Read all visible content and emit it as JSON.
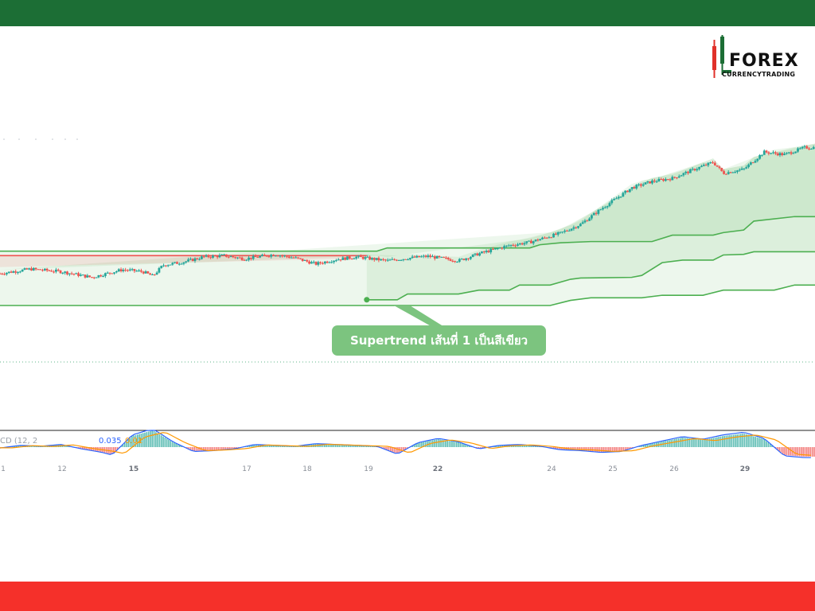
{
  "colors": {
    "top_bar": "#1c6e35",
    "bottom_bar": "#f5302a",
    "up_candle": "#26a69a",
    "down_candle": "#ef5350",
    "supertrend_green": "#4caf50",
    "supertrend_red": "#ef5350",
    "callout_bg": "#7cc47f",
    "macd_line": "#2962ff",
    "signal_line": "#ff9800"
  },
  "logo": {
    "main": "FOREX",
    "sub": "CURRENCYTRADING",
    "mark_icon": "candlestick-logo-icon"
  },
  "callout": {
    "text": "Supertrend เส้นที่ 1 เป็นสีเขียว"
  },
  "macd": {
    "legend_name": "CD (12, 2",
    "value_macd": "0.035",
    "value_signal": "0.01"
  },
  "chart_data": {
    "type": "candlestick",
    "x_tick_labels": [
      {
        "label": "1",
        "bold": false
      },
      {
        "label": "12",
        "bold": false
      },
      {
        "label": "15",
        "bold": true
      },
      {
        "label": "17",
        "bold": false
      },
      {
        "label": "18",
        "bold": false
      },
      {
        "label": "19",
        "bold": false
      },
      {
        "label": "22",
        "bold": true
      },
      {
        "label": "24",
        "bold": false
      },
      {
        "label": "25",
        "bold": false
      },
      {
        "label": "26",
        "bold": false
      },
      {
        "label": "29",
        "bold": true
      }
    ],
    "price_path": [
      [
        0,
        50
      ],
      [
        3,
        57
      ],
      [
        6,
        53
      ],
      [
        9,
        44
      ],
      [
        12,
        56
      ],
      [
        14,
        53
      ],
      [
        15,
        46
      ],
      [
        16,
        63
      ],
      [
        18,
        68
      ],
      [
        20,
        76
      ],
      [
        22,
        78
      ],
      [
        24,
        73
      ],
      [
        27,
        80
      ],
      [
        29,
        74
      ],
      [
        31,
        65
      ],
      [
        33,
        72
      ],
      [
        35,
        76
      ],
      [
        38,
        70
      ],
      [
        40,
        74
      ],
      [
        42,
        77
      ],
      [
        45,
        70
      ],
      [
        47,
        81
      ],
      [
        50,
        94
      ],
      [
        52,
        99
      ],
      [
        55,
        113
      ],
      [
        57,
        127
      ],
      [
        59,
        151
      ],
      [
        61,
        173
      ],
      [
        62,
        184
      ],
      [
        64,
        194
      ],
      [
        66,
        199
      ],
      [
        68,
        212
      ],
      [
        70,
        224
      ],
      [
        71,
        207
      ],
      [
        73,
        213
      ],
      [
        75,
        240
      ],
      [
        77,
        236
      ],
      [
        79,
        247
      ]
    ],
    "x_range": [
      0,
      80
    ],
    "y_range": [
      0,
      260
    ],
    "supertrend_lines": [
      {
        "id": "supertrend-3",
        "color": "green",
        "points": [
          [
            0,
            0
          ],
          [
            54,
            0
          ],
          [
            56,
            8
          ],
          [
            58,
            12
          ],
          [
            63,
            12
          ],
          [
            65,
            16
          ],
          [
            69,
            16
          ],
          [
            71,
            24
          ],
          [
            76,
            24
          ],
          [
            78,
            32
          ],
          [
            80,
            32
          ]
        ]
      },
      {
        "id": "supertrend-1",
        "color": "green",
        "start_x": 36,
        "points": [
          [
            36,
            9
          ],
          [
            39,
            9
          ],
          [
            40,
            18
          ],
          [
            45,
            18
          ],
          [
            47,
            24
          ],
          [
            50,
            24
          ],
          [
            51,
            32
          ],
          [
            54,
            32
          ],
          [
            56,
            41
          ],
          [
            57,
            43
          ],
          [
            62,
            44
          ],
          [
            63,
            47
          ],
          [
            65,
            67
          ],
          [
            67,
            71
          ],
          [
            70,
            71
          ],
          [
            71,
            79
          ],
          [
            73,
            80
          ],
          [
            74,
            84
          ],
          [
            80,
            84
          ]
        ]
      },
      {
        "id": "supertrend-2",
        "color": "green",
        "points": [
          [
            0,
            85
          ],
          [
            37,
            85
          ],
          [
            38,
            90
          ],
          [
            52,
            90
          ],
          [
            53,
            95
          ],
          [
            55,
            98
          ],
          [
            58,
            100
          ],
          [
            64,
            100
          ],
          [
            66,
            110
          ],
          [
            70,
            110
          ],
          [
            71,
            114
          ],
          [
            73,
            118
          ],
          [
            74,
            132
          ],
          [
            78,
            139
          ],
          [
            80,
            139
          ]
        ]
      },
      {
        "id": "supertrend-red",
        "color": "red",
        "points": [
          [
            0,
            78
          ],
          [
            36,
            78
          ]
        ]
      }
    ],
    "macd_histogram": [
      [
        0,
        -0.002
      ],
      [
        2,
        0.004
      ],
      [
        4,
        0.002
      ],
      [
        6,
        0.006
      ],
      [
        8,
        -0.004
      ],
      [
        10,
        -0.012
      ],
      [
        11,
        -0.018
      ],
      [
        13,
        0.028
      ],
      [
        15,
        0.042
      ],
      [
        17,
        0.012
      ],
      [
        19,
        -0.01
      ],
      [
        21,
        -0.008
      ],
      [
        23,
        -0.004
      ],
      [
        25,
        0.006
      ],
      [
        27,
        0.004
      ],
      [
        29,
        0.002
      ],
      [
        31,
        0.008
      ],
      [
        33,
        0.006
      ],
      [
        35,
        0.004
      ],
      [
        37,
        0.002
      ],
      [
        39,
        -0.016
      ],
      [
        41,
        0.01
      ],
      [
        43,
        0.02
      ],
      [
        45,
        0.012
      ],
      [
        47,
        -0.004
      ],
      [
        49,
        0.004
      ],
      [
        51,
        0.006
      ],
      [
        53,
        0.002
      ],
      [
        55,
        -0.006
      ],
      [
        57,
        -0.008
      ],
      [
        59,
        -0.012
      ],
      [
        61,
        -0.01
      ],
      [
        63,
        0.004
      ],
      [
        65,
        0.014
      ],
      [
        67,
        0.024
      ],
      [
        69,
        0.018
      ],
      [
        71,
        0.028
      ],
      [
        73,
        0.034
      ],
      [
        75,
        0.02
      ],
      [
        77,
        -0.02
      ],
      [
        79,
        -0.024
      ]
    ],
    "macd_range": [
      -0.04,
      0.04
    ]
  }
}
